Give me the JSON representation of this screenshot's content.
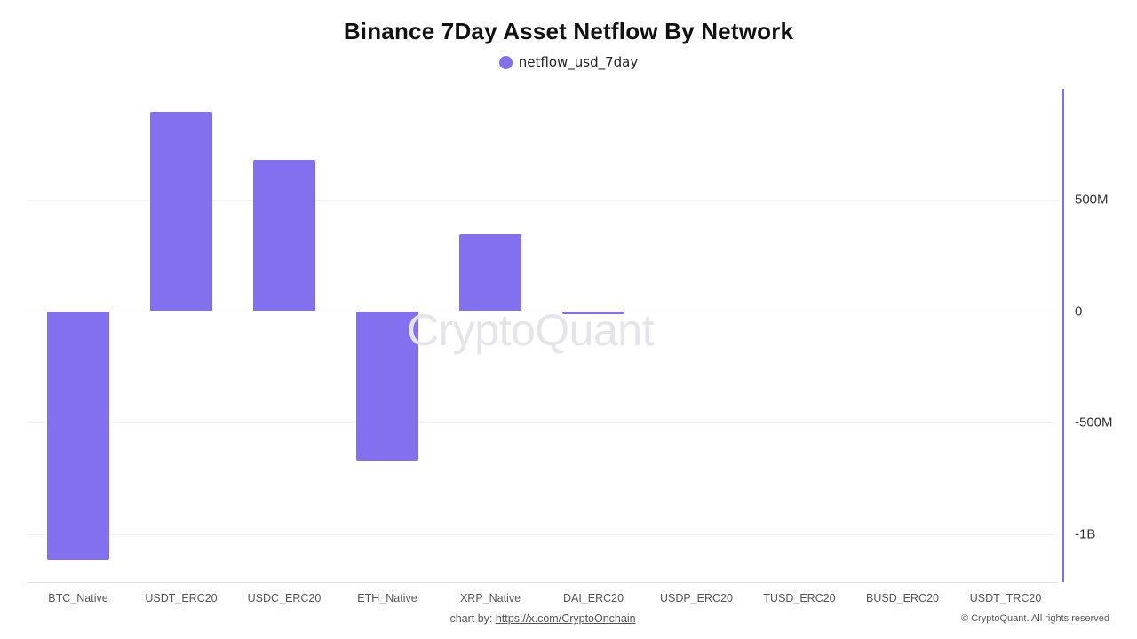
{
  "chart": {
    "title": "Binance 7Day Asset Netflow By Network",
    "legend_label": "netflow_usd_7day",
    "bar_color": "#8270ef",
    "axis_color": "#8270ef",
    "watermark": "CryptoQuant",
    "y_ticks": [
      {
        "label": "500M",
        "value": 500
      },
      {
        "label": "0",
        "value": 0
      },
      {
        "label": "-500M",
        "value": -500
      },
      {
        "label": "-1B",
        "value": -1000
      }
    ]
  },
  "footer": {
    "chart_by_prefix": "chart by: ",
    "chart_by_link": "https://x.com/CryptoOnchain",
    "copyright": "© CryptoQuant. All rights reserved"
  },
  "chart_data": {
    "type": "bar",
    "title": "Binance 7Day Asset Netflow By Network",
    "xlabel": "",
    "ylabel": "",
    "y_axis_position": "right",
    "unit": "USD (millions)",
    "categories": [
      "BTC_Native",
      "USDT_ERC20",
      "USDC_ERC20",
      "ETH_Native",
      "XRP_Native",
      "DAI_ERC20",
      "USDP_ERC20",
      "TUSD_ERC20",
      "BUSD_ERC20",
      "USDT_TRC20"
    ],
    "series": [
      {
        "name": "netflow_usd_7day",
        "values": [
          -1117,
          894,
          679,
          -671,
          345,
          -12,
          0,
          0,
          0,
          0
        ]
      }
    ],
    "ylim": [
      -1220,
      1000
    ],
    "y_ticks": [
      "500M",
      "0",
      "-500M",
      "-1B"
    ],
    "grid": true,
    "legend_position": "top"
  }
}
